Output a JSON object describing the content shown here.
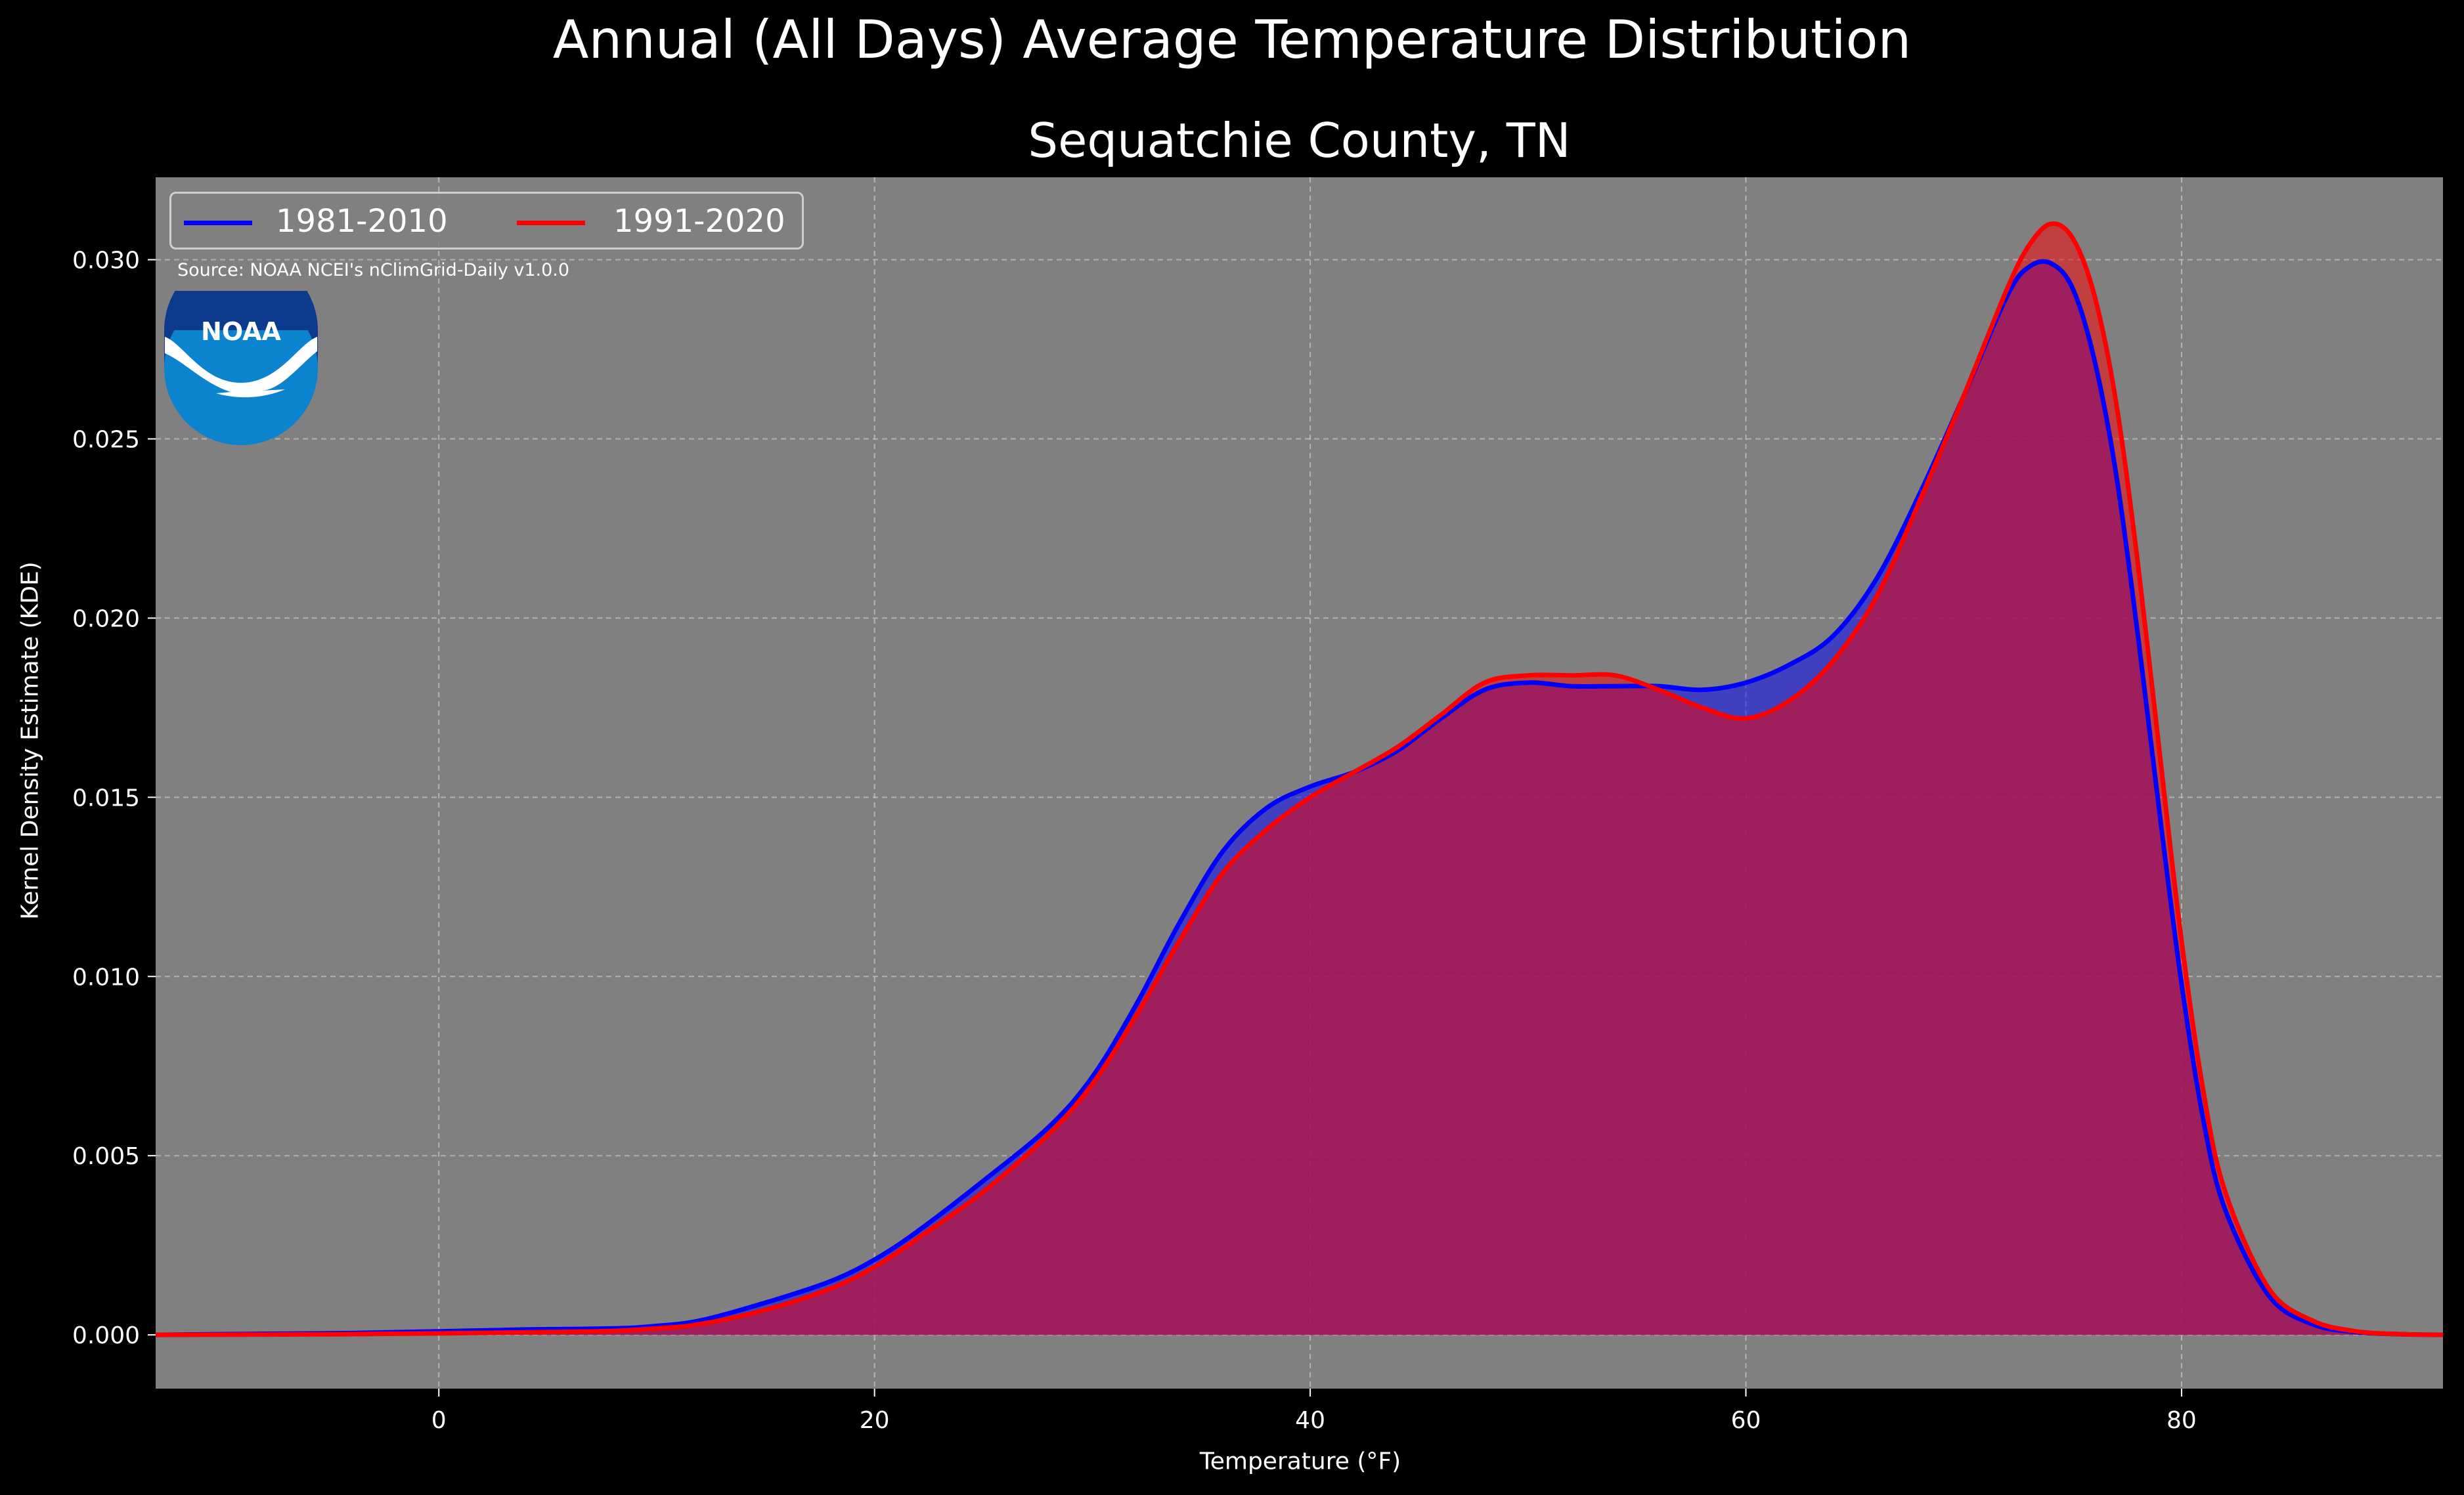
{
  "title": "Annual (All Days) Average Temperature Distribution",
  "source": "Source: NOAA NCEI's nClimGrid-Daily v1.0.0",
  "logo": {
    "text": "NOAA",
    "icon": "noaa-logo"
  },
  "colors": {
    "background": "#000000",
    "plot_bg": "#808080",
    "series1": "#0000ff",
    "series2": "#ff0000",
    "fill1": "#3a35c8",
    "fill2": "#cc3a3a",
    "overlap": "#9c1e5c"
  },
  "chart_data": {
    "type": "area",
    "title": "Sequatchie County, TN",
    "xlabel": "Temperature (°F)",
    "ylabel": "Kernel Density Estimate (KDE)",
    "xlim": [
      -13,
      92
    ],
    "ylim": [
      -0.0015,
      0.0323
    ],
    "xticks": [
      0,
      20,
      40,
      60,
      80
    ],
    "xtick_labels": [
      "0",
      "20",
      "40",
      "60",
      "80"
    ],
    "yticks": [
      0.0,
      0.005,
      0.01,
      0.015,
      0.02,
      0.025,
      0.03
    ],
    "ytick_labels": [
      "0.000",
      "0.005",
      "0.010",
      "0.015",
      "0.020",
      "0.025",
      "0.030"
    ],
    "grid": true,
    "legend_position": "top-left",
    "x": [
      -13,
      -8,
      -4,
      0,
      4,
      8,
      10,
      12,
      15,
      18,
      20,
      22,
      25,
      28,
      30,
      32,
      34,
      36,
      38,
      40,
      42,
      44,
      46,
      48,
      50,
      52,
      54,
      56,
      58,
      60,
      62,
      64,
      66,
      68,
      70,
      72,
      73,
      74,
      75,
      76,
      77,
      78,
      79,
      80,
      81,
      82,
      84,
      86,
      88,
      90,
      92
    ],
    "series": [
      {
        "name": "1981-2010",
        "values": [
          0.0,
          3e-05,
          5e-05,
          0.0001,
          0.00015,
          0.00018,
          0.00025,
          0.0004,
          0.0009,
          0.0015,
          0.0021,
          0.0029,
          0.0043,
          0.0058,
          0.0072,
          0.0092,
          0.0115,
          0.0135,
          0.0147,
          0.0153,
          0.0157,
          0.0163,
          0.0172,
          0.018,
          0.0182,
          0.0181,
          0.0181,
          0.0181,
          0.018,
          0.0182,
          0.0187,
          0.0195,
          0.0211,
          0.0235,
          0.0262,
          0.029,
          0.0298,
          0.0299,
          0.0292,
          0.0272,
          0.024,
          0.0195,
          0.0145,
          0.0098,
          0.006,
          0.0035,
          0.0011,
          0.0003,
          8e-05,
          2e-05,
          0.0
        ]
      },
      {
        "name": "1991-2020",
        "values": [
          0.0,
          1e-05,
          2e-05,
          4e-05,
          7e-05,
          0.00011,
          0.00018,
          0.0003,
          0.0007,
          0.0013,
          0.0019,
          0.0027,
          0.004,
          0.0056,
          0.007,
          0.0089,
          0.011,
          0.0129,
          0.0141,
          0.015,
          0.0157,
          0.0164,
          0.0173,
          0.0182,
          0.0184,
          0.0184,
          0.0184,
          0.018,
          0.0175,
          0.0172,
          0.0177,
          0.0188,
          0.0206,
          0.0233,
          0.0262,
          0.0292,
          0.0304,
          0.031,
          0.0306,
          0.029,
          0.026,
          0.0215,
          0.0162,
          0.011,
          0.0068,
          0.004,
          0.0013,
          0.0004,
          0.0001,
          2e-05,
          0.0
        ]
      }
    ]
  }
}
